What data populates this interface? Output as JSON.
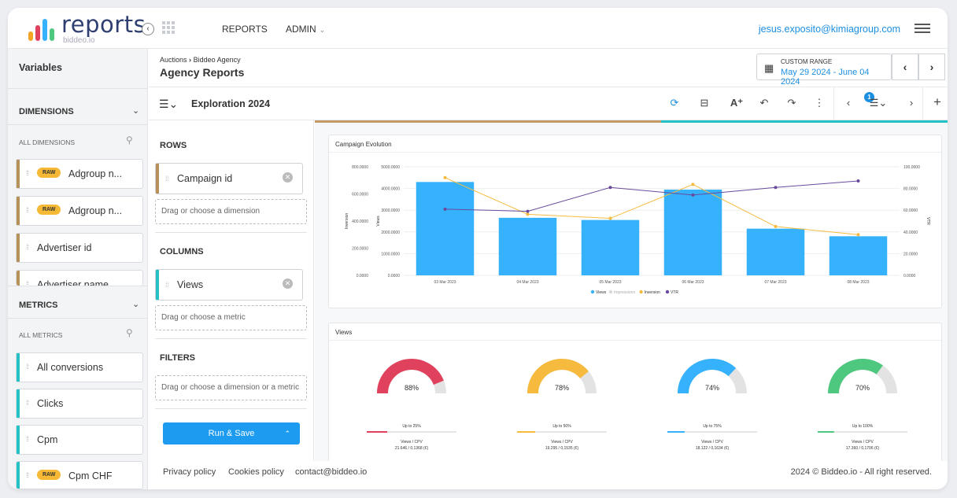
{
  "app": {
    "logo_text": "reports",
    "logo_sub": "biddeo.io"
  },
  "nav": {
    "reports": "REPORTS",
    "admin": "ADMIN",
    "user_email": "jesus.exposito@kimiagroup.com"
  },
  "sidebar": {
    "title": "Variables",
    "dimensions_label": "DIMENSIONS",
    "all_dimensions": "ALL DIMENSIONS",
    "dimensions": [
      {
        "label": "Adgroup n...",
        "raw": "RAW"
      },
      {
        "label": "Adgroup n...",
        "raw": "RAW"
      },
      {
        "label": "Advertiser id",
        "raw": ""
      },
      {
        "label": "Advertiser name",
        "raw": ""
      }
    ],
    "metrics_label": "METRICS",
    "all_metrics": "ALL METRICS",
    "metrics": [
      {
        "label": "All conversions",
        "raw": ""
      },
      {
        "label": "Clicks",
        "raw": ""
      },
      {
        "label": "Cpm",
        "raw": ""
      },
      {
        "label": "Cpm CHF",
        "raw": "RAW"
      }
    ]
  },
  "header": {
    "breadcrumb_parent": "Auctions",
    "breadcrumb_child": "Biddeo Agency",
    "title": "Agency Reports",
    "range_label": "CUSTOM RANGE",
    "range_value": "May 29 2024 - June 04 2024"
  },
  "toolbar": {
    "title": "Exploration 2024",
    "badge": "1"
  },
  "builder": {
    "rows_label": "ROWS",
    "row_chip": "Campaign id",
    "row_drop": "Drag or choose a dimension",
    "columns_label": "COLUMNS",
    "column_chip": "Views",
    "column_drop": "Drag or choose a metric",
    "filters_label": "FILTERS",
    "filter_drop": "Drag or choose a dimension or a metric",
    "run_label": "Run & Save"
  },
  "colors": {
    "views": "#36b1fb",
    "inversion": "#f6bb3e",
    "vtr": "#6a4a9d",
    "impressions": "#d9d9d9",
    "red": "#e0425e",
    "green": "#4ec77f",
    "accent": "#1d8fe0"
  },
  "chart_data": [
    {
      "type": "bar",
      "title": "Campaign Evolution",
      "categories": [
        "03 Mar 2023",
        "04 Mar 2023",
        "05 Mar 2023",
        "06 Mar 2023",
        "07 Mar 2023",
        "08 Mar 2023"
      ],
      "left_outer_axis": {
        "label": "Inversion",
        "ticks": [
          "800.0000",
          "600.0000",
          "400.0000",
          "200.0000",
          "0.0000"
        ]
      },
      "left_inner_axis": {
        "label": "Views",
        "ticks": [
          "5000.0000",
          "4000.0000",
          "3000.0000",
          "2000.0000",
          "1000.0000",
          "0.0000"
        ]
      },
      "right_axis": {
        "label": "VTR",
        "ticks": [
          "100.0000",
          "80.0000",
          "60.0000",
          "40.0000",
          "20.0000",
          "0.0000"
        ]
      },
      "legend": [
        "Views",
        "Impressions",
        "Inversion",
        "VTR"
      ],
      "series": [
        {
          "name": "Views",
          "axis": "views",
          "values": [
            4300,
            2650,
            2550,
            3950,
            2150,
            1800
          ]
        },
        {
          "name": "Inversion",
          "axis": "inversion",
          "values": [
            720,
            450,
            420,
            670,
            360,
            300
          ]
        },
        {
          "name": "VTR",
          "axis": "vtr",
          "values": [
            61,
            59,
            81,
            74,
            81,
            87
          ]
        }
      ],
      "ylim_views": [
        0,
        5000
      ],
      "ylim_inversion": [
        0,
        800
      ],
      "ylim_vtr": [
        0,
        100
      ]
    },
    {
      "type": "gauge",
      "title": "Views",
      "gauges": [
        {
          "value": 88,
          "label": "88%",
          "caption": "Up to 25%",
          "metric": "Views / CPV",
          "detail": "21.646 / 0,1368 (€)",
          "color": "#e0425e"
        },
        {
          "value": 78,
          "label": "78%",
          "caption": "Up to 50%",
          "metric": "Views / CPV",
          "detail": "19.295 / 0,1535 (€)",
          "color": "#f6bb3e"
        },
        {
          "value": 74,
          "label": "74%",
          "caption": "Up to 75%",
          "metric": "Views / CPV",
          "detail": "18.122 / 0,1634 (€)",
          "color": "#36b1fb"
        },
        {
          "value": 70,
          "label": "70%",
          "caption": "Up to 100%",
          "metric": "Views / CPV",
          "detail": "17.360 / 0,1706 (€)",
          "color": "#4ec77f"
        }
      ]
    }
  ],
  "footer": {
    "privacy": "Privacy policy",
    "cookies": "Cookies policy",
    "contact": "contact@biddeo.io",
    "copyright": "2024 © Biddeo.io - All right reserved."
  }
}
